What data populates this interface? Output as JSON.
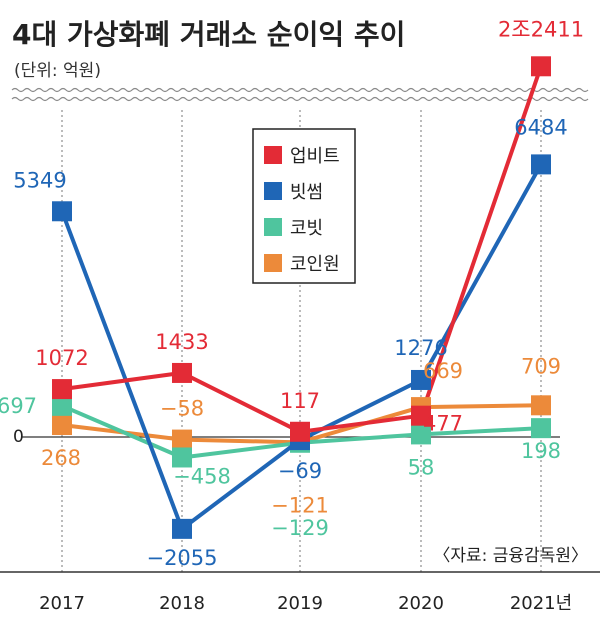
{
  "chart_data": {
    "type": "line",
    "title": "4대 가상화폐 거래소 순이익 추이",
    "subtitle": "(단위: 억원)",
    "source": "〈자료: 금융감독원〉",
    "categories": [
      "2017",
      "2018",
      "2019",
      "2020",
      "2021년"
    ],
    "zero_label": "0",
    "y_axis_break": true,
    "series": [
      {
        "name": "업비트",
        "color": "#e32b36",
        "values": [
          1072,
          1433,
          117,
          477,
          22411
        ],
        "labels": [
          "1072",
          "1433",
          "117",
          "477",
          "2조2411"
        ]
      },
      {
        "name": "빗썸",
        "color": "#1f66b6",
        "values": [
          5349,
          -2055,
          -69,
          1276,
          6484
        ],
        "labels": [
          "5349",
          "−2055",
          "−69",
          "1276",
          "6484"
        ]
      },
      {
        "name": "코빗",
        "color": "#4fc59e",
        "values": [
          697,
          -458,
          -129,
          58,
          198
        ],
        "labels": [
          "697",
          "−458",
          "−129",
          "58",
          "198"
        ]
      },
      {
        "name": "코인원",
        "color": "#ec8a3a",
        "values": [
          268,
          -58,
          -121,
          669,
          709
        ],
        "labels": [
          "268",
          "−58",
          "−121",
          "669",
          "709"
        ]
      }
    ]
  }
}
